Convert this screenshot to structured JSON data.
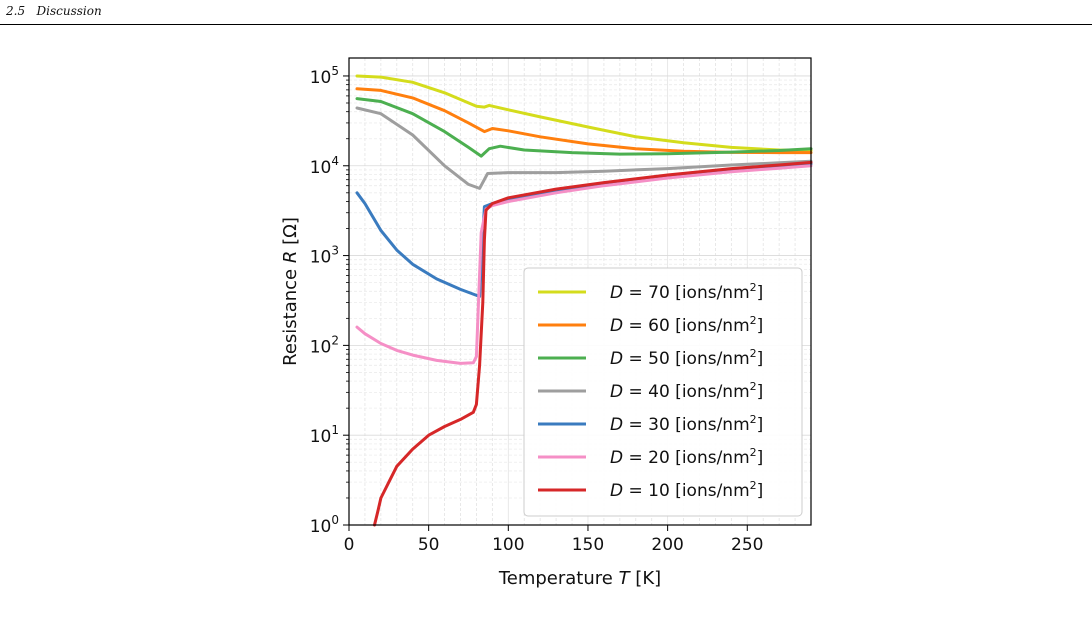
{
  "header": {
    "section_number": "2.5",
    "section_title": "Discussion"
  },
  "chart_data": {
    "type": "line",
    "xlabel": "Temperature T [K]",
    "ylabel": "Resistance R [Ω]",
    "xlim": [
      0,
      290
    ],
    "ylim_log10": [
      0,
      5.2
    ],
    "yscale": "log",
    "x_ticks": [
      0,
      50,
      100,
      150,
      200,
      250
    ],
    "y_ticks": [
      {
        "value": 1,
        "label": "10",
        "exp": "0"
      },
      {
        "value": 10,
        "label": "10",
        "exp": "1"
      },
      {
        "value": 100,
        "label": "10",
        "exp": "2"
      },
      {
        "value": 1000,
        "label": "10",
        "exp": "3"
      },
      {
        "value": 10000,
        "label": "10",
        "exp": "4"
      },
      {
        "value": 100000,
        "label": "10",
        "exp": "5"
      }
    ],
    "grid": true,
    "legend_position": "lower-right",
    "series": [
      {
        "name": "D = 70 [ions/nm2]",
        "color": "#d4dc1c",
        "points": [
          [
            5,
            100000
          ],
          [
            20,
            97000
          ],
          [
            40,
            85000
          ],
          [
            60,
            65000
          ],
          [
            80,
            46000
          ],
          [
            85,
            45000
          ],
          [
            88,
            47000
          ],
          [
            100,
            42000
          ],
          [
            120,
            35000
          ],
          [
            150,
            27000
          ],
          [
            180,
            21000
          ],
          [
            210,
            18000
          ],
          [
            240,
            16000
          ],
          [
            270,
            15000
          ],
          [
            290,
            14800
          ]
        ]
      },
      {
        "name": "D = 60 [ions/nm2]",
        "color": "#ff7f0e",
        "points": [
          [
            5,
            72000
          ],
          [
            20,
            69000
          ],
          [
            40,
            57000
          ],
          [
            60,
            41000
          ],
          [
            75,
            30000
          ],
          [
            85,
            24000
          ],
          [
            90,
            26000
          ],
          [
            100,
            24500
          ],
          [
            120,
            21000
          ],
          [
            150,
            17500
          ],
          [
            180,
            15500
          ],
          [
            210,
            14500
          ],
          [
            240,
            14100
          ],
          [
            270,
            14000
          ],
          [
            290,
            14000
          ]
        ]
      },
      {
        "name": "D = 50 [ions/nm2]",
        "color": "#4caf50",
        "points": [
          [
            5,
            56000
          ],
          [
            20,
            52000
          ],
          [
            40,
            38000
          ],
          [
            60,
            24000
          ],
          [
            75,
            16000
          ],
          [
            83,
            12800
          ],
          [
            88,
            15500
          ],
          [
            95,
            16500
          ],
          [
            110,
            15000
          ],
          [
            140,
            14000
          ],
          [
            170,
            13500
          ],
          [
            200,
            13600
          ],
          [
            240,
            14200
          ],
          [
            270,
            14800
          ],
          [
            290,
            15500
          ]
        ]
      },
      {
        "name": "D = 40 [ions/nm2]",
        "color": "#9e9e9e",
        "points": [
          [
            5,
            44000
          ],
          [
            20,
            38000
          ],
          [
            40,
            22000
          ],
          [
            60,
            10000
          ],
          [
            75,
            6200
          ],
          [
            82,
            5600
          ],
          [
            87,
            8200
          ],
          [
            100,
            8400
          ],
          [
            130,
            8400
          ],
          [
            160,
            8700
          ],
          [
            200,
            9300
          ],
          [
            240,
            10200
          ],
          [
            270,
            10800
          ],
          [
            290,
            11200
          ]
        ]
      },
      {
        "name": "D = 30 [ions/nm2]",
        "color": "#3a7bbf",
        "points": [
          [
            5,
            5000
          ],
          [
            10,
            3800
          ],
          [
            20,
            1900
          ],
          [
            30,
            1150
          ],
          [
            40,
            800
          ],
          [
            55,
            550
          ],
          [
            70,
            420
          ],
          [
            82,
            350
          ],
          [
            85,
            3500
          ],
          [
            90,
            3800
          ],
          [
            100,
            4200
          ],
          [
            130,
            5300
          ],
          [
            160,
            6300
          ],
          [
            200,
            7700
          ],
          [
            240,
            9000
          ],
          [
            270,
            9900
          ],
          [
            290,
            10500
          ]
        ]
      },
      {
        "name": "D = 20 [ions/nm2]",
        "color": "#f58fc6",
        "points": [
          [
            5,
            160
          ],
          [
            10,
            135
          ],
          [
            20,
            105
          ],
          [
            30,
            88
          ],
          [
            40,
            78
          ],
          [
            55,
            68
          ],
          [
            70,
            63
          ],
          [
            78,
            64
          ],
          [
            80,
            75
          ],
          [
            83,
            1800
          ],
          [
            86,
            3300
          ],
          [
            90,
            3600
          ],
          [
            100,
            4000
          ],
          [
            130,
            5000
          ],
          [
            160,
            6000
          ],
          [
            200,
            7300
          ],
          [
            240,
            8600
          ],
          [
            270,
            9400
          ],
          [
            290,
            10000
          ]
        ]
      },
      {
        "name": "D = 10 [ions/nm2]",
        "color": "#d62728",
        "points": [
          [
            16,
            1
          ],
          [
            18,
            1.4
          ],
          [
            20,
            2
          ],
          [
            25,
            3
          ],
          [
            30,
            4.5
          ],
          [
            40,
            7
          ],
          [
            50,
            10
          ],
          [
            60,
            12.5
          ],
          [
            70,
            15
          ],
          [
            78,
            18
          ],
          [
            80,
            22
          ],
          [
            82,
            60
          ],
          [
            84,
            300
          ],
          [
            85,
            1500
          ],
          [
            86,
            3200
          ],
          [
            90,
            3800
          ],
          [
            100,
            4400
          ],
          [
            130,
            5500
          ],
          [
            160,
            6500
          ],
          [
            200,
            7900
          ],
          [
            240,
            9300
          ],
          [
            270,
            10200
          ],
          [
            290,
            10900
          ]
        ]
      }
    ],
    "legend_entries": [
      {
        "var": "D",
        "eq": "= 70",
        "unit": "[ions/nm",
        "sup": "2",
        "close": "]"
      },
      {
        "var": "D",
        "eq": "= 60",
        "unit": "[ions/nm",
        "sup": "2",
        "close": "]"
      },
      {
        "var": "D",
        "eq": "= 50",
        "unit": "[ions/nm",
        "sup": "2",
        "close": "]"
      },
      {
        "var": "D",
        "eq": "= 40",
        "unit": "[ions/nm",
        "sup": "2",
        "close": "]"
      },
      {
        "var": "D",
        "eq": "= 30",
        "unit": "[ions/nm",
        "sup": "2",
        "close": "]"
      },
      {
        "var": "D",
        "eq": "= 20",
        "unit": "[ions/nm",
        "sup": "2",
        "close": "]"
      },
      {
        "var": "D",
        "eq": "= 10",
        "unit": "[ions/nm",
        "sup": "2",
        "close": "]"
      }
    ],
    "xlabel_parts": {
      "pre": "Temperature ",
      "var": "T",
      "post": " [K]"
    },
    "ylabel_parts": {
      "pre": "Resistance ",
      "var": "R",
      "post": " [Ω]"
    }
  }
}
